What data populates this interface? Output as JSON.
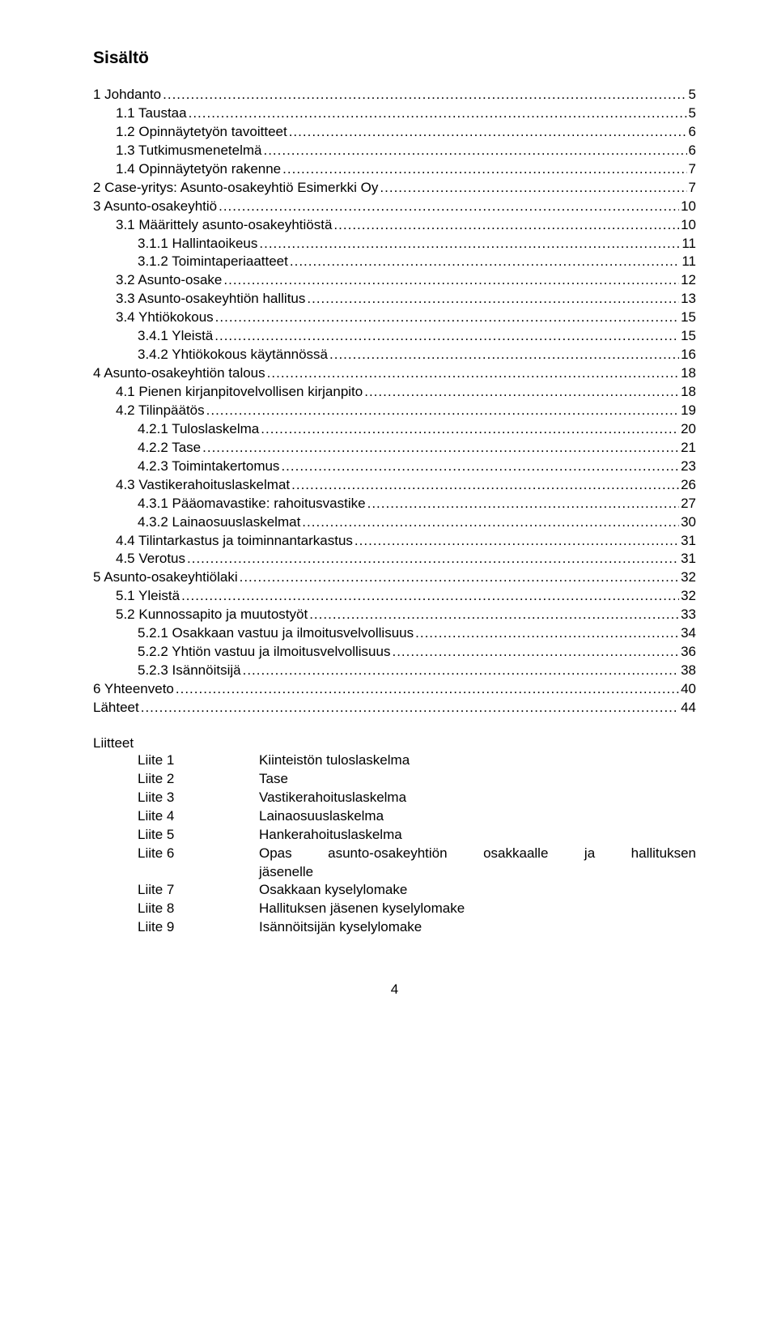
{
  "title": "Sisältö",
  "toc": [
    {
      "label": "1 Johdanto",
      "page": "5",
      "indent": 0
    },
    {
      "label": "1.1 Taustaa",
      "page": "5",
      "indent": 1
    },
    {
      "label": "1.2 Opinnäytetyön tavoitteet",
      "page": "6",
      "indent": 1
    },
    {
      "label": "1.3 Tutkimusmenetelmä",
      "page": "6",
      "indent": 1
    },
    {
      "label": "1.4 Opinnäytetyön rakenne",
      "page": "7",
      "indent": 1
    },
    {
      "label": "2 Case-yritys: Asunto-osakeyhtiö Esimerkki Oy",
      "page": "7",
      "indent": 0
    },
    {
      "label": "3 Asunto-osakeyhtiö",
      "page": "10",
      "indent": 0
    },
    {
      "label": "3.1 Määrittely asunto-osakeyhtiöstä",
      "page": "10",
      "indent": 1
    },
    {
      "label": "3.1.1 Hallintaoikeus",
      "page": "11",
      "indent": 2
    },
    {
      "label": "3.1.2 Toimintaperiaatteet",
      "page": "11",
      "indent": 2
    },
    {
      "label": "3.2 Asunto-osake",
      "page": "12",
      "indent": 1
    },
    {
      "label": "3.3 Asunto-osakeyhtiön hallitus",
      "page": "13",
      "indent": 1
    },
    {
      "label": "3.4 Yhtiökokous",
      "page": "15",
      "indent": 1
    },
    {
      "label": "3.4.1 Yleistä",
      "page": "15",
      "indent": 2
    },
    {
      "label": "3.4.2 Yhtiökokous käytännössä",
      "page": "16",
      "indent": 2
    },
    {
      "label": "4 Asunto-osakeyhtiön talous",
      "page": "18",
      "indent": 0
    },
    {
      "label": "4.1 Pienen kirjanpitovelvollisen kirjanpito",
      "page": "18",
      "indent": 1
    },
    {
      "label": "4.2 Tilinpäätös",
      "page": "19",
      "indent": 1
    },
    {
      "label": "4.2.1 Tuloslaskelma",
      "page": "20",
      "indent": 2
    },
    {
      "label": "4.2.2 Tase",
      "page": "21",
      "indent": 2
    },
    {
      "label": "4.2.3 Toimintakertomus",
      "page": "23",
      "indent": 2
    },
    {
      "label": "4.3 Vastikerahoituslaskelmat",
      "page": "26",
      "indent": 1
    },
    {
      "label": "4.3.1 Pääomavastike: rahoitusvastike",
      "page": "27",
      "indent": 2
    },
    {
      "label": "4.3.2 Lainaosuuslaskelmat",
      "page": "30",
      "indent": 2
    },
    {
      "label": "4.4 Tilintarkastus ja toiminnantarkastus",
      "page": "31",
      "indent": 1
    },
    {
      "label": "4.5 Verotus",
      "page": "31",
      "indent": 1
    },
    {
      "label": "5 Asunto-osakeyhtiölaki",
      "page": "32",
      "indent": 0
    },
    {
      "label": "5.1 Yleistä",
      "page": "32",
      "indent": 1
    },
    {
      "label": "5.2 Kunnossapito ja muutostyöt",
      "page": "33",
      "indent": 1
    },
    {
      "label": "5.2.1 Osakkaan vastuu ja ilmoitusvelvollisuus",
      "page": "34",
      "indent": 2
    },
    {
      "label": "5.2.2 Yhtiön vastuu ja ilmoitusvelvollisuus",
      "page": "36",
      "indent": 2
    },
    {
      "label": "5.2.3 Isännöitsijä",
      "page": "38",
      "indent": 2
    },
    {
      "label": "6 Yhteenveto",
      "page": "40",
      "indent": 0
    },
    {
      "label": "Lähteet",
      "page": "44",
      "indent": 0
    }
  ],
  "attachments_title": "Liitteet",
  "attachments": [
    {
      "key": "Liite 1",
      "value": "Kiinteistön tuloslaskelma"
    },
    {
      "key": "Liite 2",
      "value": "Tase"
    },
    {
      "key": "Liite 3",
      "value": "Vastikerahoituslaskelma"
    },
    {
      "key": "Liite 4",
      "value": "Lainaosuuslaskelma"
    },
    {
      "key": "Liite 5",
      "value": "Hankerahoituslaskelma"
    },
    {
      "key": "Liite 6",
      "value_line1": "Opas asunto-osakeyhtiön osakkaalle ja hallituksen",
      "value_line2": "jäsenelle"
    },
    {
      "key": "Liite 7",
      "value": "Osakkaan kyselylomake"
    },
    {
      "key": "Liite 8",
      "value": "Hallituksen jäsenen kyselylomake"
    },
    {
      "key": "Liite 9",
      "value": "Isännöitsijän kyselylomake"
    }
  ],
  "page_number": "4"
}
